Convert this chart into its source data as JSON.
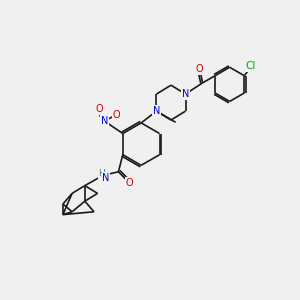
{
  "background_color": "#f0f0f0",
  "bond_color": "#1a1a1a",
  "atom_colors": {
    "N": "#0000cc",
    "O": "#cc0000",
    "Cl": "#00aa00",
    "H": "#3a8a7a",
    "C": "#1a1a1a"
  }
}
